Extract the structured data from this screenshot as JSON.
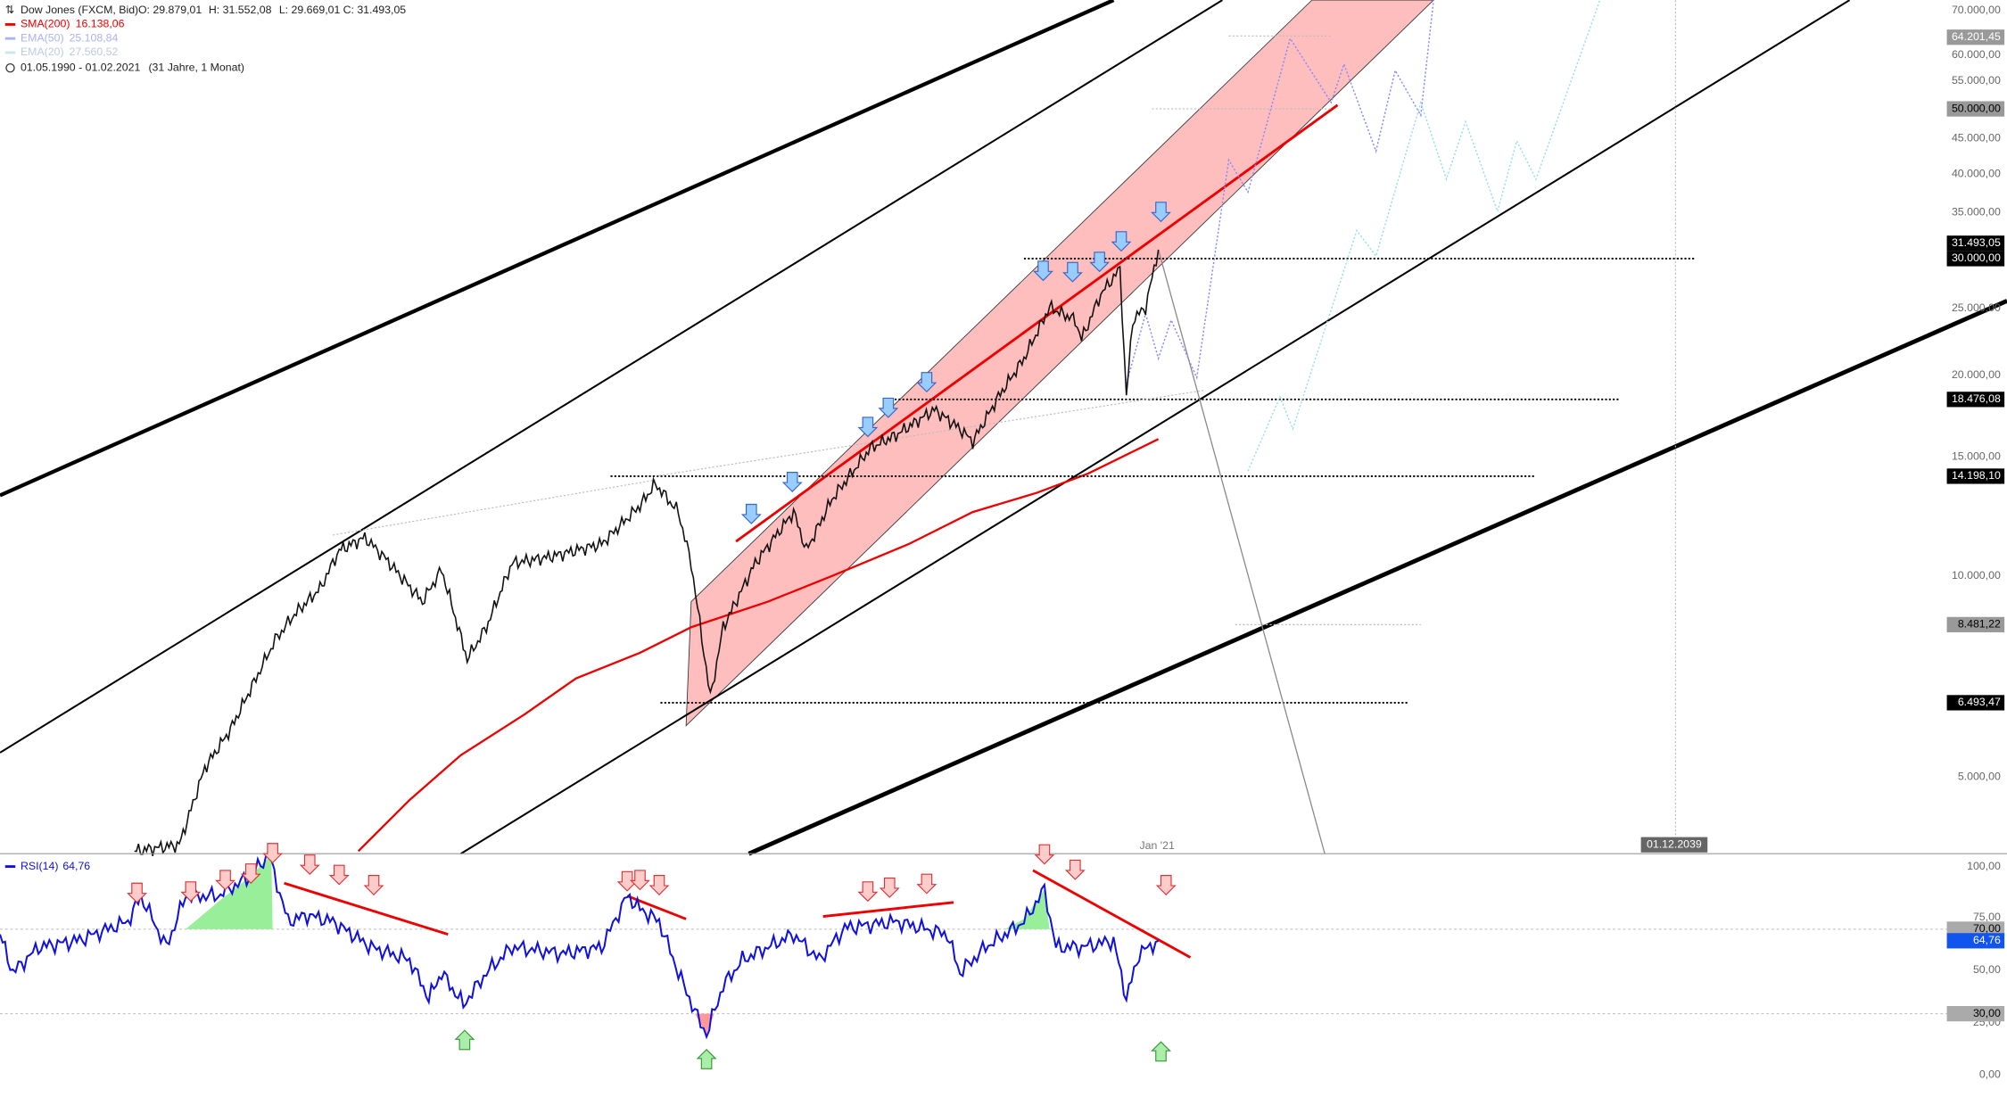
{
  "header": {
    "instrument": "Dow Jones (FXCM, Bid)",
    "ohlc": [
      "O: 29.879,01",
      "H: 31.552,08",
      "L: 29.669,01",
      "C: 31.493,05"
    ],
    "indicators": [
      {
        "name": "SMA(200)",
        "value": "16.138,06"
      },
      {
        "name": "EMA(50)",
        "value": "25.108,84"
      },
      {
        "name": "EMA(20)",
        "value": "27.560,52"
      }
    ],
    "range": "01.05.1990 - 01.02.2021",
    "duration": "(31 Jahre, 1 Monat)"
  },
  "price_axis": {
    "labels": [
      "70.000,00",
      "60.000,00",
      "55.000,00",
      "45.000,00",
      "40.000,00",
      "35.000,00",
      "25.000,00",
      "20.000,00",
      "15.000,00",
      "10.000,00",
      "5.000,00"
    ],
    "markers": [
      "64.201,45",
      "50.000,00",
      "31.493,05",
      "30.000,00",
      "18.476,08",
      "14.198,10",
      "8.481,22",
      "6.493,47"
    ]
  },
  "time_axis": {
    "label": "Jan '21",
    "marker": "01.12.2039"
  },
  "rsi": {
    "title": "RSI(14)",
    "value": "64,76",
    "labels": [
      "100,00",
      "75,00",
      "50,00",
      "25,00",
      "0,00"
    ],
    "markers": [
      "70,00",
      "64,76",
      "30,00"
    ]
  }
}
